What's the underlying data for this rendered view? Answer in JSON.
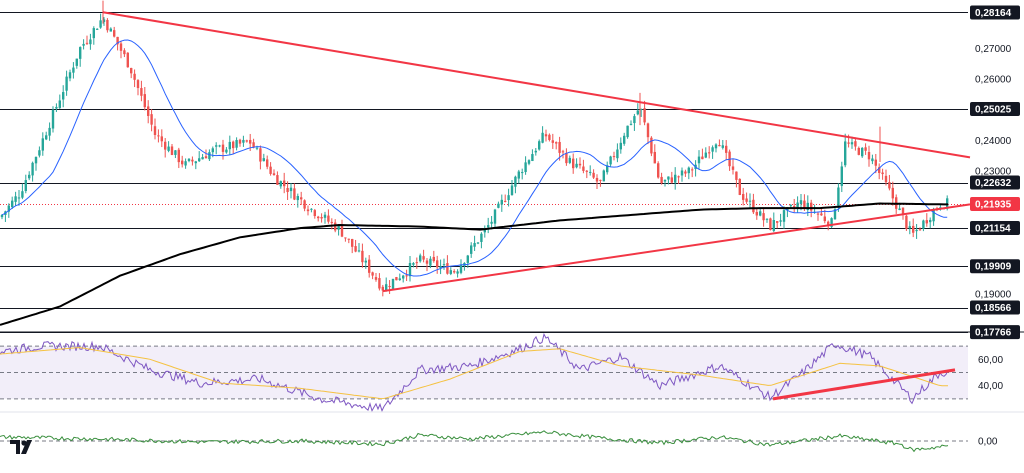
{
  "chart_data": [
    {
      "type": "candlestick",
      "title": "",
      "price_range": [
        0.1777,
        0.2857
      ],
      "y_ticks": [
        "0,28164",
        "0,27000",
        "0,26000",
        "0,25025",
        "0,24000",
        "0,23000",
        "0,22632",
        "0,21935",
        "0,21154",
        "0,19909",
        "0,19000",
        "0,18566",
        "0,17766"
      ],
      "support_resistance_levels": [
        {
          "label": "0,28164",
          "value": 0.28164
        },
        {
          "label": "0,25025",
          "value": 0.25025
        },
        {
          "label": "0,22632",
          "value": 0.22632
        },
        {
          "label": "0,21154",
          "value": 0.21154
        },
        {
          "label": "0,19909",
          "value": 0.19909
        },
        {
          "label": "0,18566",
          "value": 0.18566
        },
        {
          "label": "0,17766",
          "value": 0.17766
        }
      ],
      "current_price": {
        "label": "0,21935",
        "value": 0.21935
      },
      "trendlines": [
        {
          "name": "descending-resistance",
          "from": [
            103,
            0.2817
          ],
          "to": [
            970,
            0.2345
          ]
        },
        {
          "name": "ascending-support",
          "from": [
            383,
            0.191
          ],
          "to": [
            970,
            0.2192
          ]
        }
      ],
      "moving_averages": [
        {
          "name": "short-ma",
          "color": "#2962ff"
        },
        {
          "name": "long-ma",
          "color": "#000000"
        }
      ],
      "candles_summary": [
        [
          0,
          0.215
        ],
        [
          20,
          0.223
        ],
        [
          45,
          0.242
        ],
        [
          80,
          0.27
        ],
        [
          103,
          0.28
        ],
        [
          130,
          0.264
        ],
        [
          155,
          0.242
        ],
        [
          185,
          0.232
        ],
        [
          215,
          0.237
        ],
        [
          250,
          0.2395
        ],
        [
          275,
          0.228
        ],
        [
          310,
          0.218
        ],
        [
          340,
          0.211
        ],
        [
          383,
          0.192
        ],
        [
          420,
          0.201
        ],
        [
          455,
          0.1975
        ],
        [
          490,
          0.213
        ],
        [
          520,
          0.23
        ],
        [
          545,
          0.242
        ],
        [
          570,
          0.233
        ],
        [
          600,
          0.226
        ],
        [
          625,
          0.243
        ],
        [
          640,
          0.251
        ],
        [
          660,
          0.226
        ],
        [
          690,
          0.23
        ],
        [
          718,
          0.241
        ],
        [
          740,
          0.223
        ],
        [
          770,
          0.212
        ],
        [
          800,
          0.22
        ],
        [
          832,
          0.213
        ],
        [
          845,
          0.239
        ],
        [
          870,
          0.235
        ],
        [
          895,
          0.22
        ],
        [
          912,
          0.209
        ],
        [
          940,
          0.2195
        ]
      ],
      "colors": {
        "up": "#26a69a",
        "down": "#ef5350",
        "trendline": "#f23645",
        "level_label_bg": "#131722",
        "current_label_bg": "#f23645"
      }
    },
    {
      "type": "line",
      "name": "rsi-panel",
      "y_ticks": [
        "60,00",
        "40,00"
      ],
      "range": [
        20,
        80
      ],
      "bands": [
        70,
        50,
        30
      ],
      "series": [
        {
          "name": "rsi",
          "color": "#7e57c2",
          "values": [
            [
              0,
              66
            ],
            [
              40,
              70
            ],
            [
              100,
              70
            ],
            [
              150,
              52
            ],
            [
              200,
              42
            ],
            [
              260,
              45
            ],
            [
              320,
              30
            ],
            [
              383,
              22
            ],
            [
              420,
              52
            ],
            [
              470,
              55
            ],
            [
              520,
              68
            ],
            [
              545,
              77
            ],
            [
              580,
              52
            ],
            [
              620,
              62
            ],
            [
              660,
              40
            ],
            [
              720,
              55
            ],
            [
              770,
              31
            ],
            [
              800,
              48
            ],
            [
              835,
              72
            ],
            [
              870,
              62
            ],
            [
              912,
              30
            ],
            [
              940,
              50
            ]
          ]
        },
        {
          "name": "rsi-ma",
          "color": "#f5c242",
          "values": [
            [
              0,
              64
            ],
            [
              80,
              69
            ],
            [
              150,
              60
            ],
            [
              220,
              42
            ],
            [
              300,
              38
            ],
            [
              383,
              30
            ],
            [
              450,
              45
            ],
            [
              520,
              66
            ],
            [
              560,
              68
            ],
            [
              620,
              55
            ],
            [
              700,
              48
            ],
            [
              770,
              40
            ],
            [
              840,
              57
            ],
            [
              880,
              55
            ],
            [
              940,
              40
            ]
          ]
        }
      ],
      "trendline": {
        "from": [
          773,
          30
        ],
        "to": [
          955,
          52
        ]
      }
    },
    {
      "type": "line",
      "name": "oscillator-panel",
      "y_ticks": [
        "0,00"
      ],
      "zero_line": 0,
      "series": [
        {
          "name": "oscillator",
          "color": "#388e3c"
        }
      ]
    }
  ],
  "icons": {
    "logo": "tradingview-logo-icon"
  }
}
